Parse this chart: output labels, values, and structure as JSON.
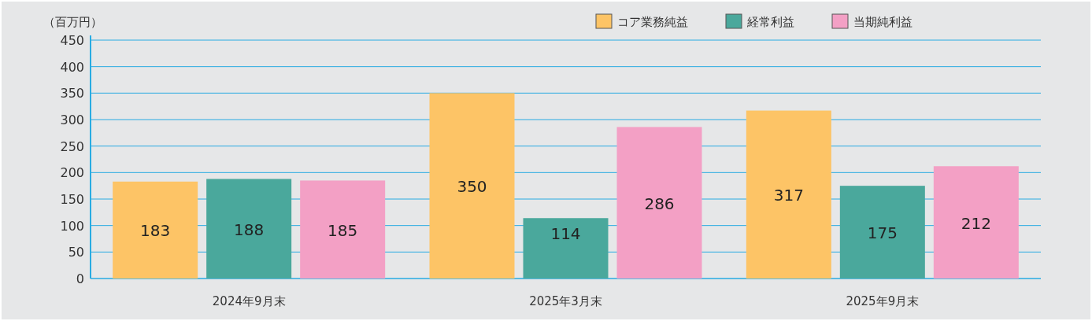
{
  "chart_data": {
    "type": "bar",
    "ylabel": "（百万円）",
    "categories": [
      "2024年9月末",
      "2025年3月末",
      "2025年9月末"
    ],
    "series": [
      {
        "name": "コア業務純益",
        "color": "#fdc466",
        "values": [
          183,
          350,
          317
        ]
      },
      {
        "name": "経常利益",
        "color": "#4aa89c",
        "values": [
          188,
          114,
          175
        ]
      },
      {
        "name": "当期純利益",
        "color": "#f3a0c5",
        "values": [
          185,
          286,
          212
        ]
      }
    ],
    "ylim": [
      0,
      450
    ],
    "yticks": [
      0,
      50,
      100,
      150,
      200,
      250,
      300,
      350,
      400,
      450
    ],
    "grid": "y",
    "legend": "top right",
    "data_labels": true
  }
}
